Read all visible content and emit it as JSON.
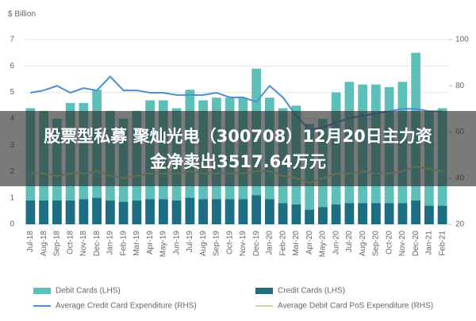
{
  "chart_data": {
    "type": "bar-line",
    "y_label": "$ Billion",
    "categories": [
      "Jul-18",
      "Aug-18",
      "Sep-18",
      "Oct-18",
      "Nov-18",
      "Dec-18",
      "Jan-19",
      "Feb-19",
      "Mar-19",
      "Apr-19",
      "May-19",
      "Jun-19",
      "Jul-19",
      "Aug-19",
      "Sep-19",
      "Oct-19",
      "Nov-19",
      "Dec-19",
      "Jan-20",
      "Feb-20",
      "Mar-20",
      "Apr-20",
      "May-20",
      "Jun-20",
      "Jul-20",
      "Aug-20",
      "Sep-20",
      "Oct-20",
      "Nov-20",
      "Dec-20",
      "Jan-21",
      "Feb-21"
    ],
    "series": [
      {
        "name": "Debit Cards (LHS)",
        "kind": "bar",
        "color": "#5cbfb8",
        "values": [
          4.4,
          4.3,
          4.0,
          4.6,
          4.6,
          5.1,
          4.3,
          4.0,
          4.3,
          4.7,
          4.7,
          4.4,
          5.1,
          4.7,
          4.8,
          4.8,
          4.8,
          5.9,
          4.8,
          4.4,
          4.5,
          3.8,
          4.0,
          5.0,
          5.4,
          5.3,
          5.3,
          5.2,
          5.4,
          6.5,
          4.3,
          4.4
        ]
      },
      {
        "name": "Credit Cards (LHS)",
        "kind": "bar",
        "color": "#1f6d83",
        "values": [
          0.9,
          0.9,
          0.9,
          0.9,
          0.95,
          1.0,
          0.9,
          0.85,
          0.9,
          0.95,
          0.95,
          0.9,
          1.0,
          0.95,
          0.95,
          0.95,
          0.95,
          1.1,
          0.95,
          0.8,
          0.75,
          0.55,
          0.65,
          0.75,
          0.8,
          0.8,
          0.8,
          0.8,
          0.8,
          0.9,
          0.7,
          0.7
        ]
      },
      {
        "name": "Average Credit Card Expenditure (RHS)",
        "kind": "line",
        "axis": "y2",
        "color": "#4a8fd6",
        "values": [
          77,
          78,
          80,
          77,
          79,
          78,
          84,
          78,
          78,
          77,
          77,
          76,
          76,
          76,
          77,
          75,
          75,
          73,
          80,
          75,
          67,
          61,
          62,
          64,
          66,
          67,
          68,
          69,
          70,
          70,
          69,
          69
        ]
      },
      {
        "name": "Average Debit Card PoS Expenditure (RHS)",
        "kind": "line",
        "axis": "y2",
        "color": "#c8d99a",
        "values": [
          42,
          42,
          41,
          42,
          42,
          43,
          41,
          40,
          41,
          42,
          42,
          42,
          43,
          42,
          42,
          42,
          42,
          43,
          43,
          41,
          40,
          38,
          40,
          42,
          42,
          43,
          42,
          42,
          43,
          45,
          44,
          43
        ]
      }
    ],
    "ylim": [
      0,
      7
    ],
    "yticks": [
      0,
      1,
      2,
      3,
      4,
      5,
      6,
      7
    ],
    "y2lim": [
      20,
      100
    ],
    "y2ticks": [
      20,
      40,
      60,
      80,
      100
    ]
  },
  "banner": {
    "line1": "股票型私募 聚灿光电（300708）12月20日主力资",
    "line2": "金净卖出3517.64万元"
  }
}
